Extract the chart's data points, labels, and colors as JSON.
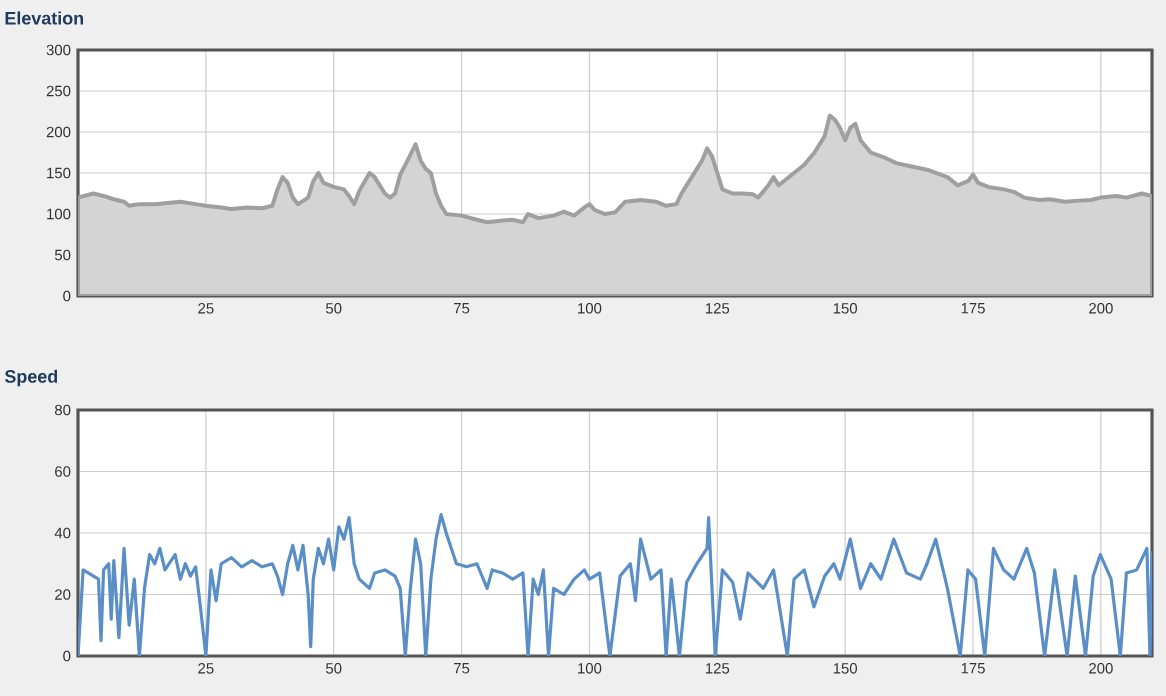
{
  "chart_data": [
    {
      "type": "area",
      "title": "Elevation",
      "color": "#d4d4d4",
      "grid": true,
      "xlim": [
        0,
        210
      ],
      "ylim": [
        0,
        300
      ],
      "xticks": [
        25,
        50,
        75,
        100,
        125,
        150,
        175,
        200
      ],
      "yticks": [
        0,
        50,
        100,
        150,
        200,
        250,
        300
      ],
      "x": [
        0,
        3,
        5,
        7,
        9,
        10,
        12,
        15,
        20,
        23,
        25,
        28,
        30,
        33,
        36,
        38,
        39,
        40,
        41,
        42,
        43,
        45,
        46,
        47,
        48,
        50,
        52,
        53,
        54,
        55,
        57,
        58,
        60,
        61,
        62,
        63,
        64,
        66,
        67,
        68,
        69,
        70,
        71,
        72,
        75,
        78,
        80,
        83,
        85,
        87,
        88,
        90,
        93,
        95,
        97,
        99,
        100,
        101,
        103,
        105,
        107,
        110,
        113,
        115,
        117,
        118,
        120,
        122,
        123,
        124,
        125,
        126,
        128,
        130,
        132,
        133,
        135,
        136,
        137,
        140,
        142,
        144,
        146,
        147,
        148,
        149,
        150,
        151,
        152,
        153,
        155,
        158,
        160,
        163,
        166,
        170,
        172,
        174,
        175,
        176,
        178,
        181,
        183,
        185,
        188,
        190,
        193,
        195,
        198,
        200,
        203,
        205,
        208,
        210
      ],
      "values": [
        120,
        125,
        122,
        118,
        115,
        110,
        112,
        112,
        115,
        112,
        110,
        108,
        106,
        108,
        107,
        110,
        130,
        145,
        138,
        120,
        112,
        120,
        140,
        150,
        138,
        133,
        130,
        122,
        112,
        128,
        150,
        145,
        125,
        120,
        125,
        148,
        160,
        185,
        165,
        155,
        150,
        125,
        110,
        100,
        98,
        93,
        90,
        92,
        93,
        90,
        100,
        95,
        98,
        103,
        98,
        108,
        112,
        105,
        100,
        102,
        115,
        117,
        115,
        110,
        112,
        125,
        145,
        165,
        180,
        170,
        150,
        130,
        125,
        125,
        124,
        120,
        135,
        145,
        135,
        150,
        160,
        175,
        195,
        220,
        215,
        205,
        190,
        205,
        210,
        190,
        175,
        168,
        162,
        158,
        154,
        145,
        135,
        140,
        148,
        138,
        133,
        130,
        127,
        120,
        117,
        118,
        115,
        116,
        117,
        120,
        122,
        120,
        125,
        122
      ]
    },
    {
      "type": "line",
      "title": "Speed",
      "color": "#5a8ec6",
      "grid": true,
      "xlim": [
        0,
        210
      ],
      "ylim": [
        0,
        80
      ],
      "xticks": [
        25,
        50,
        75,
        100,
        125,
        150,
        175,
        200
      ],
      "yticks": [
        0,
        20,
        40,
        60,
        80
      ],
      "x": [
        0,
        1,
        2,
        3,
        4,
        4.5,
        5,
        6,
        6.5,
        7,
        8,
        9,
        10,
        11,
        12,
        13,
        14,
        15,
        16,
        17,
        19,
        20,
        21,
        22,
        23,
        24,
        25,
        26,
        27,
        28,
        30,
        32,
        34,
        36,
        38,
        39,
        40,
        41,
        42,
        43,
        44,
        45,
        45.5,
        46,
        47,
        48,
        49,
        50,
        51,
        52,
        53,
        54,
        55,
        57,
        58,
        60,
        62,
        63,
        64,
        65,
        66,
        67,
        68,
        69,
        70,
        71,
        72,
        73,
        74,
        76,
        78,
        80,
        81,
        83,
        85,
        87,
        88,
        89,
        90,
        91,
        92,
        93,
        95,
        97,
        99,
        100,
        102,
        104,
        106,
        108,
        109,
        110,
        112,
        114,
        115,
        116,
        117.6,
        119,
        121,
        123,
        123.3,
        124.6,
        126,
        128,
        129.5,
        131,
        134,
        136,
        138.7,
        140,
        142,
        143.9,
        146,
        147.8,
        149,
        151,
        153,
        155,
        157,
        159.5,
        162,
        164.7,
        166,
        167.7,
        170,
        172.5,
        174,
        175.5,
        177.3,
        179,
        181,
        183,
        185.5,
        187,
        189,
        191,
        193.4,
        195,
        197,
        198.5,
        199.9,
        202,
        203.8,
        205,
        207,
        209,
        209.6,
        210
      ],
      "values": [
        0,
        28,
        27,
        26,
        25,
        5,
        28,
        30,
        12,
        31,
        6,
        35,
        10,
        25,
        0,
        22,
        33,
        30,
        35,
        28,
        33,
        25,
        30,
        26,
        29,
        15,
        0,
        28,
        18,
        30,
        32,
        29,
        31,
        29,
        30,
        26,
        20,
        30,
        36,
        28,
        36,
        20,
        3,
        25,
        35,
        30,
        38,
        28,
        42,
        38,
        45,
        30,
        25,
        22,
        27,
        28,
        26,
        22,
        0,
        22,
        38,
        30,
        0,
        25,
        38,
        46,
        40,
        35,
        30,
        29,
        30,
        22,
        28,
        27,
        25,
        27,
        0,
        25,
        20,
        28,
        0,
        22,
        20,
        25,
        28,
        25,
        27,
        0,
        26,
        30,
        18,
        38,
        25,
        28,
        0,
        25,
        0,
        24,
        30,
        35,
        45,
        0,
        28,
        24,
        12,
        27,
        22,
        28,
        0,
        25,
        28,
        16,
        26,
        30,
        25,
        38,
        22,
        30,
        25,
        38,
        27,
        25,
        30,
        38,
        22,
        0,
        28,
        25,
        0,
        35,
        28,
        25,
        35,
        27,
        0,
        28,
        0,
        26,
        0,
        26,
        33,
        25,
        0,
        27,
        28,
        35,
        0,
        34
      ]
    }
  ]
}
